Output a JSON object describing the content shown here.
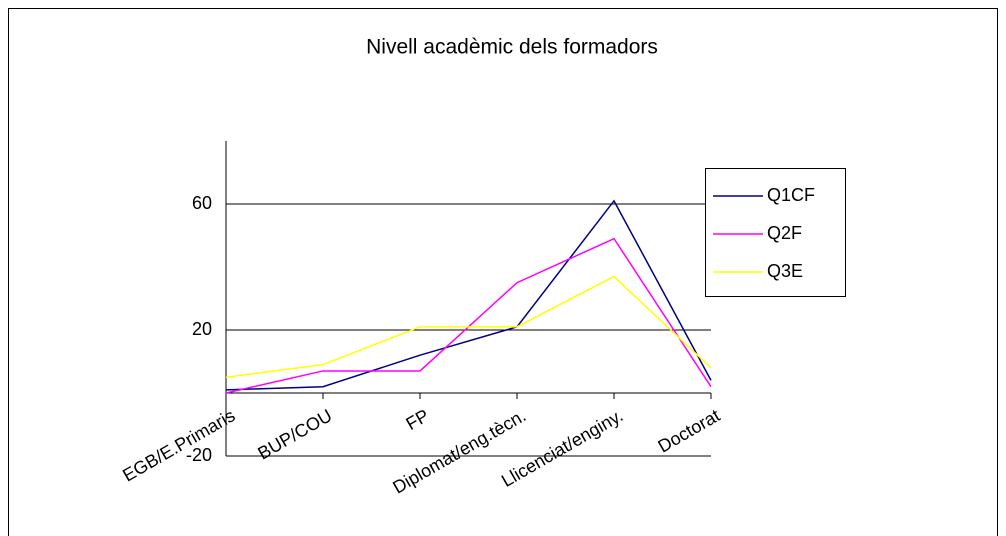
{
  "chart_data": {
    "type": "line",
    "title": "Nivell acadèmic dels formadors",
    "categories": [
      "EGB/E.Primaris",
      "BUP/COU",
      "FP",
      "Diplomat/eng.tècn.",
      "Llicenciat/enginy.",
      "Doctorat"
    ],
    "series": [
      {
        "name": "Q1CF",
        "color": "#000080",
        "values": [
          1,
          2,
          12,
          21,
          61,
          4
        ]
      },
      {
        "name": "Q2F",
        "color": "#ff00ff",
        "values": [
          0,
          7,
          7,
          35,
          49,
          2
        ]
      },
      {
        "name": "Q3E",
        "color": "#ffff00",
        "values": [
          5,
          9,
          21,
          21,
          37,
          8
        ]
      }
    ],
    "ylim": [
      -20,
      80
    ],
    "yticks": [
      -20,
      20,
      60
    ],
    "grid": true,
    "legend": "right"
  }
}
